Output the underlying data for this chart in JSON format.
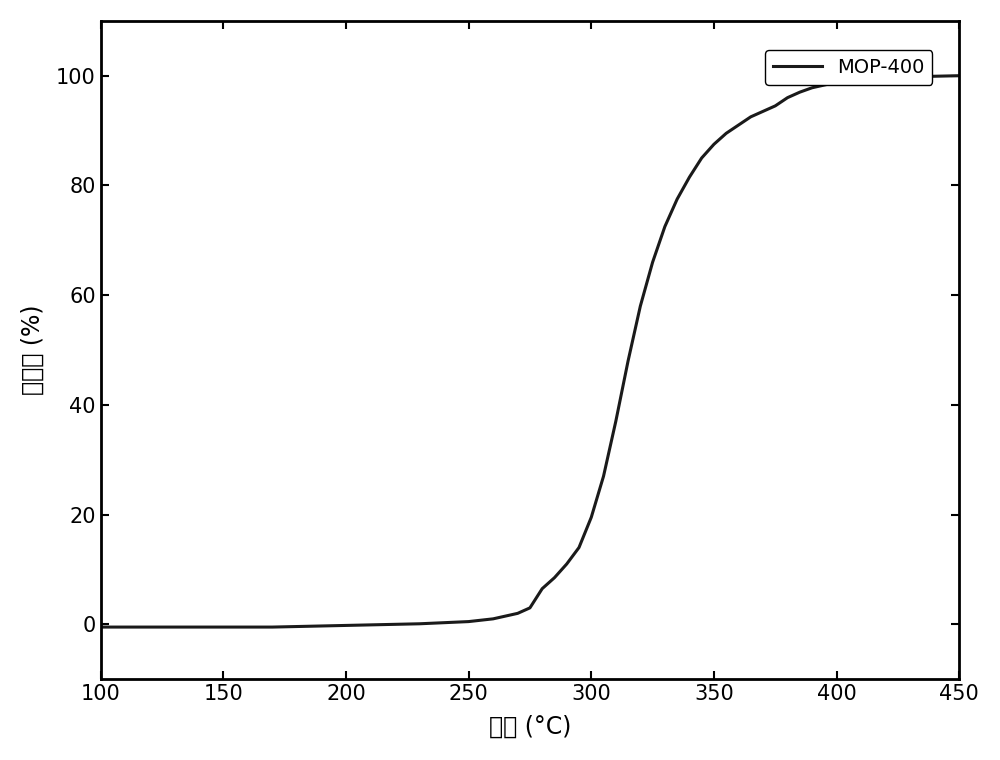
{
  "x": [
    100,
    110,
    120,
    130,
    140,
    150,
    160,
    170,
    180,
    190,
    200,
    210,
    220,
    230,
    240,
    250,
    260,
    265,
    270,
    275,
    280,
    285,
    290,
    295,
    300,
    305,
    310,
    315,
    320,
    325,
    330,
    335,
    340,
    345,
    350,
    355,
    360,
    365,
    370,
    375,
    380,
    385,
    390,
    395,
    400,
    410,
    420,
    430,
    440,
    450
  ],
  "y": [
    -0.5,
    -0.5,
    -0.5,
    -0.5,
    -0.5,
    -0.5,
    -0.5,
    -0.5,
    -0.4,
    -0.3,
    -0.2,
    -0.1,
    0.0,
    0.1,
    0.3,
    0.5,
    1.0,
    1.5,
    2.0,
    3.0,
    6.5,
    8.5,
    11.0,
    14.0,
    19.5,
    27.0,
    37.0,
    48.0,
    58.0,
    66.0,
    72.5,
    77.5,
    81.5,
    85.0,
    87.5,
    89.5,
    91.0,
    92.5,
    93.5,
    94.5,
    96.0,
    97.0,
    97.8,
    98.3,
    98.8,
    99.3,
    99.6,
    99.8,
    99.9,
    100.0
  ],
  "xlabel": "温度 (°C)",
  "ylabel": "转化率 (%)",
  "legend_label": "MOP-400",
  "xlim": [
    100,
    450
  ],
  "ylim": [
    -10,
    110
  ],
  "xticks": [
    100,
    150,
    200,
    250,
    300,
    350,
    400,
    450
  ],
  "yticks": [
    0,
    20,
    40,
    60,
    80,
    100
  ],
  "line_color": "#1a1a1a",
  "line_width": 2.2,
  "background_color": "#ffffff",
  "axis_fontsize": 17,
  "tick_fontsize": 15,
  "legend_fontsize": 14
}
